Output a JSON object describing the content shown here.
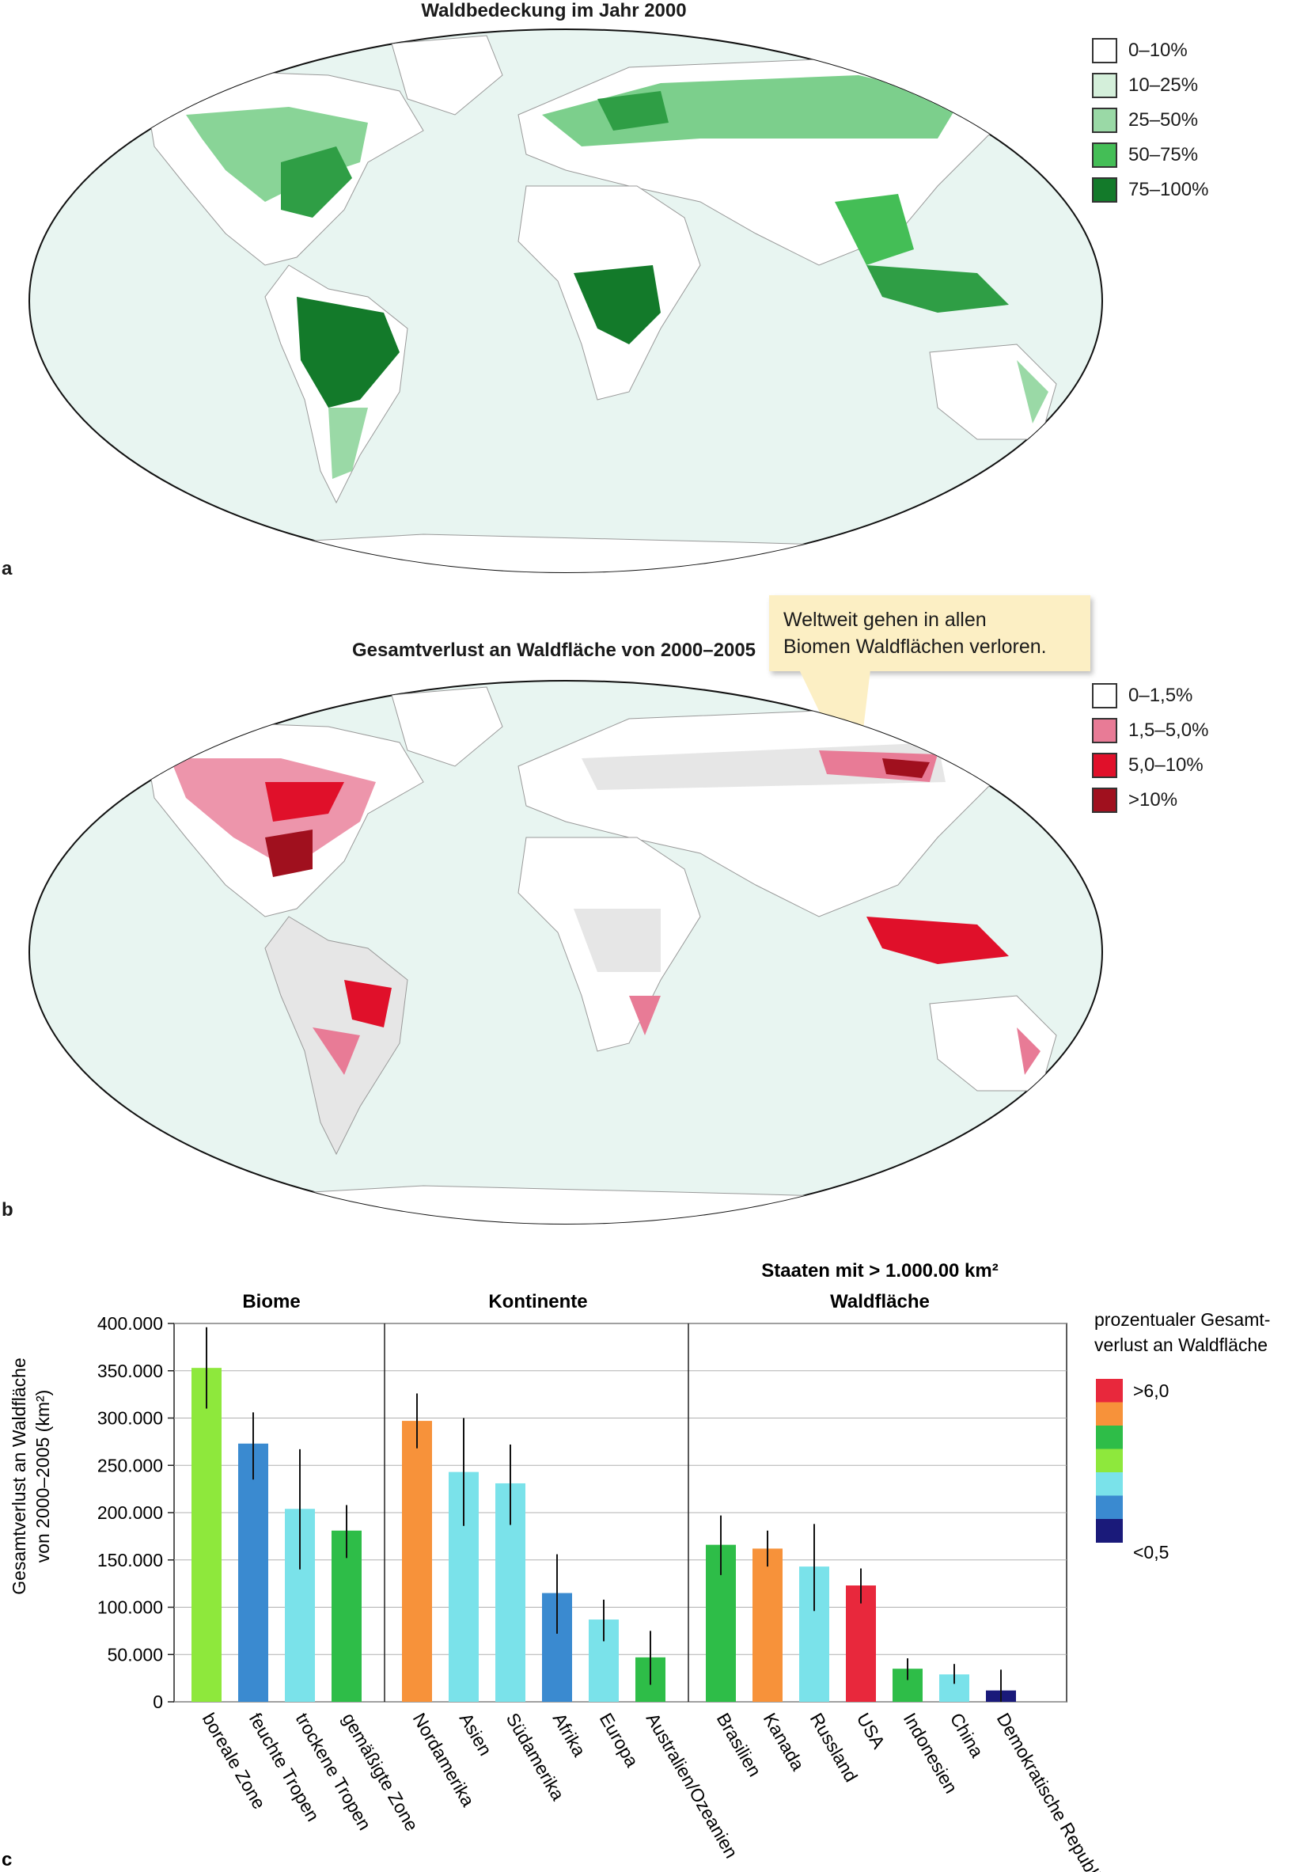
{
  "panel_a": {
    "title": "Waldbedeckung im Jahr 2000",
    "letter": "a",
    "legend": [
      {
        "label": "0–10%",
        "color": "#ffffff"
      },
      {
        "label": "10–25%",
        "color": "#d4efda"
      },
      {
        "label": "25–50%",
        "color": "#9ad9a6"
      },
      {
        "label": "50–75%",
        "color": "#44be56"
      },
      {
        "label": "75–100%",
        "color": "#137a2a"
      }
    ]
  },
  "panel_b": {
    "title": "Gesamtverlust an Waldfläche von 2000–2005",
    "letter": "b",
    "callout": {
      "line1": "Weltweit gehen in allen",
      "line2": "Biomen Waldflächen verloren."
    },
    "legend": [
      {
        "label": "0–1,5%",
        "color": "#ffffff"
      },
      {
        "label": "1,5–5,0%",
        "color": "#e87b96"
      },
      {
        "label": "5,0–10%",
        "color": "#e0102a"
      },
      {
        "label": ">10%",
        "color": "#a0101e"
      }
    ]
  },
  "panel_c": {
    "letter": "c",
    "group_titles": [
      "Biome",
      "Kontinente",
      "Staaten mit > 1.000.00 km²",
      "Waldfläche"
    ],
    "ylabel_line1": "Gesamtverlust an Waldfläche",
    "ylabel_line2": "von 2000–2005 (km²)",
    "legend_title_line1": "prozentualer Gesamt-",
    "legend_title_line2": "verlust an Waldfläche",
    "legend_high_label": ">6,0",
    "legend_low_label": "<0,5",
    "legend_colors": [
      "#e8283c",
      "#f7923a",
      "#2ebd48",
      "#8ee83c",
      "#7ae2ea",
      "#3a8ad0",
      "#1a1a7a"
    ]
  },
  "chart_data": {
    "type": "bar",
    "ylim": [
      0,
      400000
    ],
    "yticks": [
      {
        "value": 0,
        "label": "0"
      },
      {
        "value": 50000,
        "label": "50.000"
      },
      {
        "value": 100000,
        "label": "100.000"
      },
      {
        "value": 150000,
        "label": "150.000"
      },
      {
        "value": 200000,
        "label": "200.000"
      },
      {
        "value": 250000,
        "label": "250.000"
      },
      {
        "value": 300000,
        "label": "300.000"
      },
      {
        "value": 350000,
        "label": "350.000"
      },
      {
        "value": 400000,
        "label": "400.000"
      }
    ],
    "grid": true,
    "groups": [
      {
        "name": "Biome",
        "bars": [
          {
            "label": "boreale Zone",
            "value": 353000,
            "err_low": 310000,
            "err_high": 396000,
            "color": "#8ee83c"
          },
          {
            "label": "feuchte Tropen",
            "value": 273000,
            "err_low": 235000,
            "err_high": 306000,
            "color": "#3a8ad0"
          },
          {
            "label": "trockene Tropen",
            "value": 204000,
            "err_low": 140000,
            "err_high": 267000,
            "color": "#7ae2ea"
          },
          {
            "label": "gemäßigte Zone",
            "value": 181000,
            "err_low": 152000,
            "err_high": 208000,
            "color": "#2ebd48"
          }
        ]
      },
      {
        "name": "Kontinente",
        "bars": [
          {
            "label": "Nordamerika",
            "value": 297000,
            "err_low": 268000,
            "err_high": 326000,
            "color": "#f7923a"
          },
          {
            "label": "Asien",
            "value": 243000,
            "err_low": 186000,
            "err_high": 300000,
            "color": "#7ae2ea"
          },
          {
            "label": "Südamerika",
            "value": 231000,
            "err_low": 187000,
            "err_high": 272000,
            "color": "#7ae2ea"
          },
          {
            "label": "Afrika",
            "value": 115000,
            "err_low": 72000,
            "err_high": 156000,
            "color": "#3a8ad0"
          },
          {
            "label": "Europa",
            "value": 87000,
            "err_low": 64000,
            "err_high": 108000,
            "color": "#7ae2ea"
          },
          {
            "label": "Australien/Ozeanien",
            "value": 47000,
            "err_low": 18000,
            "err_high": 75000,
            "color": "#2ebd48"
          }
        ]
      },
      {
        "name": "Staaten mit > 1.000.00 km² Waldfläche",
        "bars": [
          {
            "label": "Brasilien",
            "value": 166000,
            "err_low": 134000,
            "err_high": 197000,
            "color": "#2ebd48"
          },
          {
            "label": "Kanada",
            "value": 162000,
            "err_low": 143000,
            "err_high": 181000,
            "color": "#f7923a"
          },
          {
            "label": "Russland",
            "value": 143000,
            "err_low": 96000,
            "err_high": 188000,
            "color": "#7ae2ea"
          },
          {
            "label": "USA",
            "value": 123000,
            "err_low": 104000,
            "err_high": 141000,
            "color": "#e8283c"
          },
          {
            "label": "Indonesien",
            "value": 35000,
            "err_low": 23000,
            "err_high": 46000,
            "color": "#2ebd48"
          },
          {
            "label": "China",
            "value": 29000,
            "err_low": 19000,
            "err_high": 40000,
            "color": "#7ae2ea"
          },
          {
            "label": "Demokratische Republik Kongo",
            "value": 12000,
            "err_low": 0,
            "err_high": 34000,
            "color": "#1a1a7a"
          }
        ]
      }
    ]
  }
}
